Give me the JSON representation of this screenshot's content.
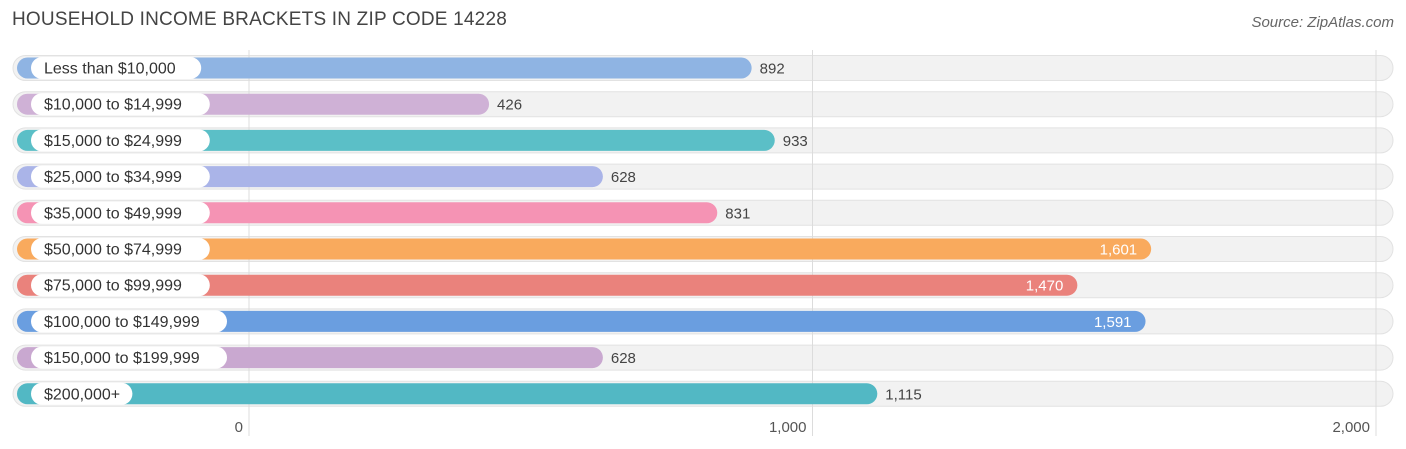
{
  "chart_data": {
    "type": "bar",
    "orientation": "horizontal",
    "title": "HOUSEHOLD INCOME BRACKETS IN ZIP CODE 14228",
    "source": "Source: ZipAtlas.com",
    "categories": [
      "Less than $10,000",
      "$10,000 to $14,999",
      "$15,000 to $24,999",
      "$25,000 to $34,999",
      "$35,000 to $49,999",
      "$50,000 to $74,999",
      "$75,000 to $99,999",
      "$100,000 to $149,999",
      "$150,000 to $199,999",
      "$200,000+"
    ],
    "values": [
      892,
      426,
      933,
      628,
      831,
      1601,
      1470,
      1591,
      628,
      1115
    ],
    "value_labels": [
      "892",
      "426",
      "933",
      "628",
      "831",
      "1,601",
      "1,470",
      "1,591",
      "628",
      "1,115"
    ],
    "colors": [
      "#8fb4e3",
      "#cfb1d6",
      "#5bbfc7",
      "#aab4e8",
      "#f593b4",
      "#f9aa5d",
      "#ea827c",
      "#6a9ee0",
      "#c9a8d0",
      "#52b8c4"
    ],
    "xlim": [
      0,
      2000
    ],
    "ticks": [
      0,
      1000,
      2000
    ],
    "tick_labels": [
      "0",
      "1,000",
      "2,000"
    ],
    "xlabel": "",
    "ylabel": "",
    "grid": true
  }
}
